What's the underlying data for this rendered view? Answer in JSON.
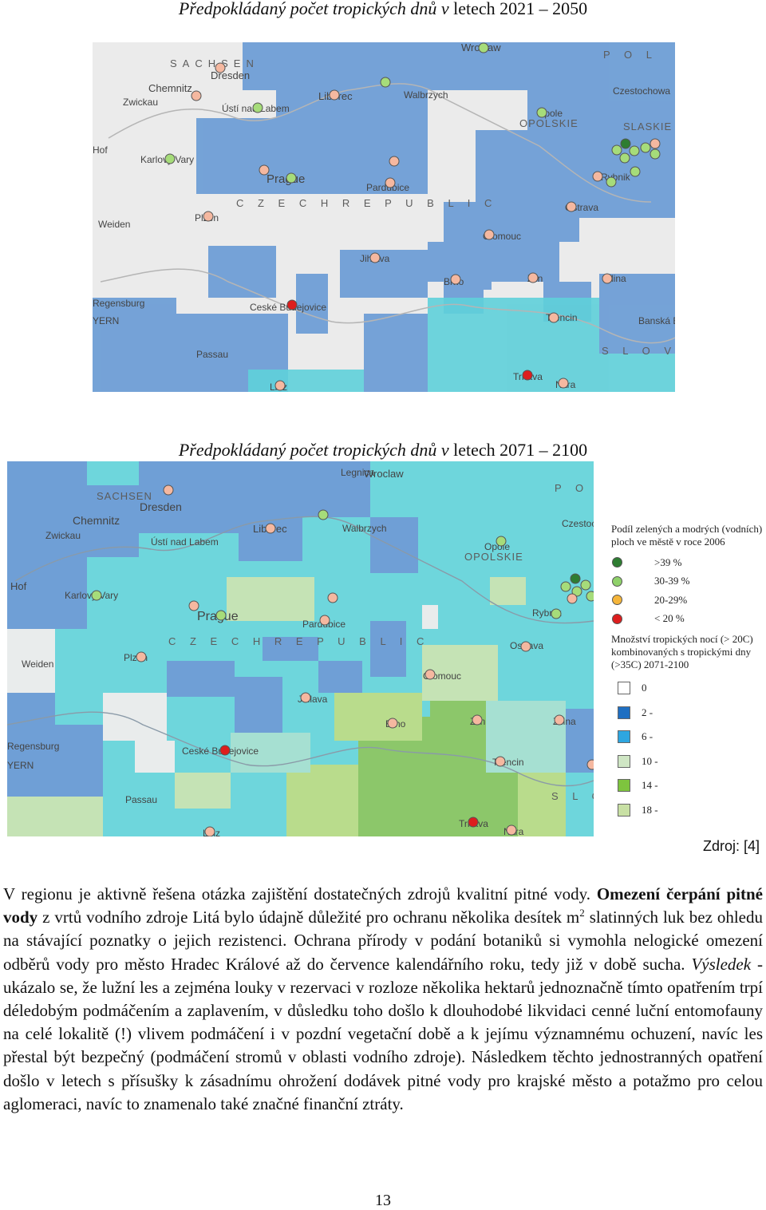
{
  "caption1": {
    "italic": "Předpokládaný počet tropických dnů v",
    "normal": " letech 2021 – 2050"
  },
  "caption2": {
    "italic": "Předpokládaný počet tropických dnů v",
    "normal": " letech 2071 – 2100"
  },
  "map_labels": {
    "sachsen": "SACHSEN",
    "dresden": "Dresden",
    "chemnitz": "Chemnitz",
    "zwickau": "Zwickau",
    "usti": "Ústí nad Labem",
    "liberec": "Liberec",
    "walbrzych": "Walbrzych",
    "wroclaw": "Wroclaw",
    "legnica": "Legnica",
    "hof": "Hof",
    "karlovy_vary": "Karlovy Vary",
    "prague": "Prague",
    "pardubice": "Pardubice",
    "opole": "Opole",
    "opolskie": "OPOLSKIE",
    "slaskie": "SLASKIE",
    "czestochowa": "Czestochowa",
    "rybnik": "Rybnik",
    "ostrava": "Ostrava",
    "weiden": "Weiden",
    "plzen": "Plzen",
    "czech_republic": "C Z E C H   R E P U B L I C",
    "olomouc": "Olomouc",
    "jihlava": "Jihlava",
    "brno": "Brno",
    "zlin": "Zlin",
    "zilina": "Zilina",
    "regensburg": "Regensburg",
    "bayern": "YERN",
    "ceske_budejovice": "Ceské Budejovice",
    "trencin": "Trencin",
    "banska_bystrica": "Banská Bystrica",
    "passau": "Passau",
    "slovakia": "S L O V A",
    "trnava": "Trnava",
    "nitra": "Nitra",
    "linz": "Linz",
    "pol": "P O L"
  },
  "legend": {
    "title1": "Podíl zelených a modrých (vodních) ploch ve městě v roce 2006",
    "green_levels": [
      {
        "label": ">39 %",
        "color": "#2e7d32"
      },
      {
        "label": "30-39 %",
        "color": "#8fd16a"
      },
      {
        "label": "20-29%",
        "color": "#f5b53a"
      },
      {
        "label": "< 20 %",
        "color": "#dd1e1e"
      }
    ],
    "title2": "Množství tropických nocí (> 20C) kombinovaných s tropickými dny (>35C) 2071-2100",
    "classes": [
      {
        "label": "0",
        "color": "#ffffff"
      },
      {
        "label": "2 -",
        "color": "#1f6fc2"
      },
      {
        "label": "6 -",
        "color": "#2ea6e0"
      },
      {
        "label": "10 -",
        "color": "#cfe6c4"
      },
      {
        "label": "14 -",
        "color": "#7ec43e"
      },
      {
        "label": "18 -",
        "color": "#c8e0a4"
      }
    ]
  },
  "source": "Zdroj: [4]",
  "paragraph": {
    "s1": "V regionu je aktivně řešena otázka zajištění dostatečných zdrojů kvalitní pitné vody. ",
    "b1": "Omezení čerpání pitné vody",
    "s2": " z vrtů vodního zdroje Litá bylo údajně důležité pro ochranu několika desítek m",
    "sup": "2",
    "s3": " slatinných luk bez ohledu na stávající poznatky o jejich rezistenci. Ochrana přírody v podání botaniků si vymohla nelogické omezení odběrů vody pro město Hradec Králové až do července kalendářního roku, tedy již v době sucha. ",
    "i1": "Výsledek",
    "s4": " - ukázalo se, že lužní les a zejména louky v rezervaci v rozloze několika hektarů jednoznačně tímto opatřením trpí déledobým podmáčením a zaplavením, v důsledku toho došlo k dlouhodobé likvidaci cenné luční entomofauny na celé lokalitě (!) vlivem podmáčení i v pozdní vegetační době a k jejímu významnému ochuzení, navíc les přestal být bezpečný (podmáčení stromů v oblasti vodního zdroje). Následkem těchto jednostranných opatření došlo v letech s přísušky k zásadnímu ohrožení dodávek pitné vody pro krajské město a potažmo pro celou aglomeraci, navíc to znamenalo také značné finanční ztráty."
  },
  "page_number": "13"
}
